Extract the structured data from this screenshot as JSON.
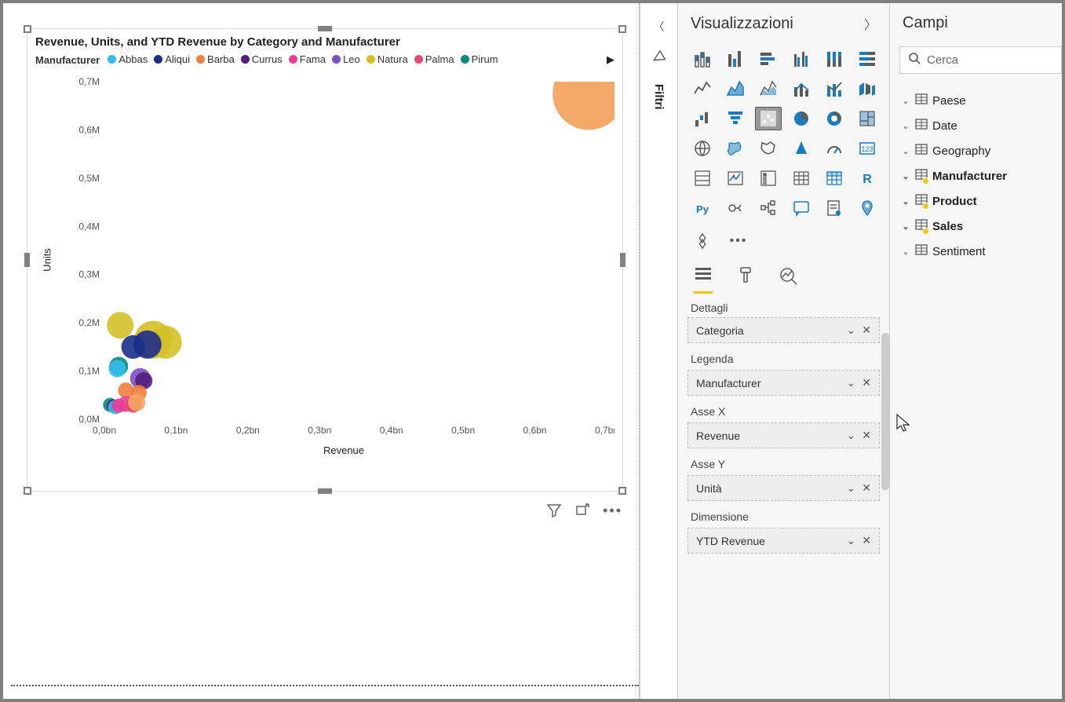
{
  "chart": {
    "title": "Revenue, Units, and YTD Revenue by Category and Manufacturer",
    "legend_title": "Manufacturer",
    "series": [
      {
        "name": "Abbas",
        "color": "#33bdee"
      },
      {
        "name": "Aliqui",
        "color": "#1c2e8a"
      },
      {
        "name": "Barba",
        "color": "#f07e3e"
      },
      {
        "name": "Currus",
        "color": "#541d7a"
      },
      {
        "name": "Fama",
        "color": "#ec3c9a"
      },
      {
        "name": "Leo",
        "color": "#7b4fc4"
      },
      {
        "name": "Natura",
        "color": "#d4c027"
      },
      {
        "name": "Palma",
        "color": "#e04b6f"
      },
      {
        "name": "Pirum",
        "color": "#0a8a7a"
      }
    ],
    "x_axis": {
      "label": "Revenue",
      "min": 0.0,
      "max": 0.7,
      "unit": "bn",
      "ticks": [
        "0,0bn",
        "0,1bn",
        "0,2bn",
        "0,3bn",
        "0,4bn",
        "0,5bn",
        "0,6bn",
        "0,7bn"
      ]
    },
    "y_axis": {
      "label": "Units",
      "min": 0.0,
      "max": 0.7,
      "unit": "M",
      "ticks": [
        "0,0M",
        "0,1M",
        "0,2M",
        "0,3M",
        "0,4M",
        "0,5M",
        "0,6M",
        "0,7M"
      ]
    },
    "bubbles": [
      {
        "x": 0.675,
        "y": 0.675,
        "r": 46,
        "color": "#f4a460"
      },
      {
        "x": 0.022,
        "y": 0.195,
        "r": 17,
        "color": "#d4c027"
      },
      {
        "x": 0.068,
        "y": 0.165,
        "r": 24,
        "color": "#d4c027"
      },
      {
        "x": 0.085,
        "y": 0.16,
        "r": 21,
        "color": "#d4c027"
      },
      {
        "x": 0.04,
        "y": 0.15,
        "r": 15,
        "color": "#1c2e8a"
      },
      {
        "x": 0.06,
        "y": 0.155,
        "r": 18,
        "color": "#1c2e8a"
      },
      {
        "x": 0.02,
        "y": 0.11,
        "r": 12,
        "color": "#0a8a7a"
      },
      {
        "x": 0.018,
        "y": 0.105,
        "r": 11,
        "color": "#33bdee"
      },
      {
        "x": 0.05,
        "y": 0.085,
        "r": 13,
        "color": "#7b4fc4"
      },
      {
        "x": 0.055,
        "y": 0.08,
        "r": 11,
        "color": "#541d7a"
      },
      {
        "x": 0.03,
        "y": 0.06,
        "r": 10,
        "color": "#f07e3e"
      },
      {
        "x": 0.048,
        "y": 0.055,
        "r": 10,
        "color": "#f07e3e"
      },
      {
        "x": 0.008,
        "y": 0.03,
        "r": 9,
        "color": "#0a8a7a"
      },
      {
        "x": 0.012,
        "y": 0.028,
        "r": 8,
        "color": "#541d7a"
      },
      {
        "x": 0.015,
        "y": 0.025,
        "r": 9,
        "color": "#33bdee"
      },
      {
        "x": 0.02,
        "y": 0.028,
        "r": 9,
        "color": "#ec3c9a"
      },
      {
        "x": 0.03,
        "y": 0.032,
        "r": 10,
        "color": "#ec3c9a"
      },
      {
        "x": 0.04,
        "y": 0.03,
        "r": 10,
        "color": "#e04b6f"
      },
      {
        "x": 0.045,
        "y": 0.035,
        "r": 11,
        "color": "#f4a460"
      }
    ],
    "frame": {
      "selected": true,
      "handle_color": "#808080"
    },
    "footer_icons": [
      "filter",
      "focus",
      "more"
    ]
  },
  "filter_strip": {
    "label": "Filtri"
  },
  "viz_panel": {
    "title": "Visualizzazioni",
    "tabs_subhead": "Dettagli",
    "selected_viz_index": 14,
    "wells": [
      {
        "label": "",
        "field": "Categoria"
      },
      {
        "label": "Legenda",
        "field": "Manufacturer"
      },
      {
        "label": "Asse X",
        "field": "Revenue"
      },
      {
        "label": "Asse Y",
        "field": "Unità"
      },
      {
        "label": "Dimensione",
        "field": "YTD Revenue"
      }
    ]
  },
  "fields_panel": {
    "title": "Campi",
    "search_placeholder": "Cerca",
    "tables": [
      {
        "name": "Paese",
        "active": false
      },
      {
        "name": "Date",
        "active": false
      },
      {
        "name": "Geography",
        "active": false
      },
      {
        "name": "Manufacturer",
        "active": true
      },
      {
        "name": "Product",
        "active": true
      },
      {
        "name": "Sales",
        "active": true
      },
      {
        "name": "Sentiment",
        "active": false
      }
    ]
  },
  "colors": {
    "panel_bg": "#f6f6f6",
    "accent": "#f2c811",
    "icon_blue": "#1a7bbf",
    "icon_gray": "#5a5a5a"
  }
}
